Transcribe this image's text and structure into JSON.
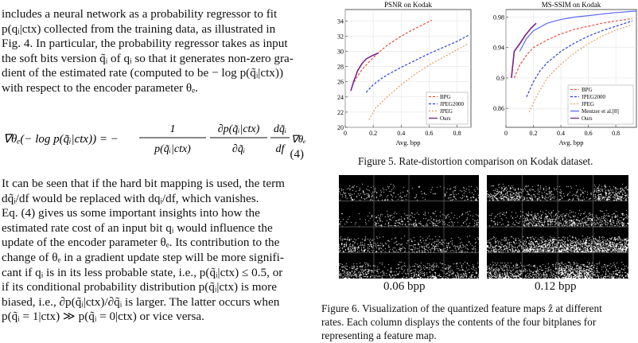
{
  "paper": {
    "lines_top": [
      "includes a neural network as a probability regressor to fit",
      "p(qᵢ|ctx) collected from the training data, as illustrated in",
      "Fig. 4. In particular, the probability regressor takes as input",
      "the soft bits version q̃ᵢ of qᵢ so that it generates non-zero gra-",
      "dient of the estimated rate (computed to be − log p(q̃ᵢ|ctx))",
      "with respect to the encoder parameter θₑ."
    ],
    "equation": {
      "lhs": "∇θₑ(− log p(q̃ᵢ|ctx)) = −",
      "frac1_num": "1",
      "frac1_den": "p(q̃ᵢ|ctx)",
      "frac2_num": "∂p(q̃ᵢ|ctx)",
      "frac2_den": "∂q̃ᵢ",
      "frac3_num": "dq̃ᵢ",
      "frac3_den": "df",
      "tail": "∇θₑ f.",
      "number": "(4)"
    },
    "lines_bottom": [
      "It can be seen that if the hard bit mapping is used, the term",
      "dq̃ᵢ/df would be replaced with dqᵢ/df, which vanishes.",
      "    Eq. (4) gives us some important insights into how the",
      "estimated rate cost of an input bit qᵢ would influence the",
      "update of the encoder parameter θₑ. Its contribution to the",
      "change of θₑ in a gradient update step will be more signifi-",
      "cant if qᵢ is in its less probable state, i.e., p(q̃ᵢ|ctx) ≤ 0.5, or",
      "if its conditional probability distribution p(q̃ᵢ|ctx) is more",
      "biased, i.e., ∂p(q̃ᵢ|ctx)/∂q̃ᵢ is larger. The latter occurs when",
      "p(q̃ᵢ = 1|ctx) ≫ p(q̃ᵢ = 0|ctx) or vice versa."
    ]
  },
  "figure5": {
    "caption": "Figure 5. Rate-distortion comparison on Kodak dataset.",
    "colors": {
      "BPG": "#e8503a",
      "JPEG2000": "#2a3fd4",
      "JPEG": "#e0a060",
      "Mentzer": "#5a6cf0",
      "Ours": "#7a2090"
    }
  },
  "chart_data": [
    {
      "type": "line",
      "title": "PSNR on Kodak",
      "xlabel": "Avg. bpp",
      "ylabel": "",
      "xlim": [
        0,
        0.9
      ],
      "ylim": [
        20,
        35.5
      ],
      "xticks": [
        "0",
        "0.2",
        "0.4",
        "0.6",
        "0.8"
      ],
      "yticks": [
        "20",
        "22",
        "24",
        "26",
        "28",
        "30",
        "32",
        "34"
      ],
      "legend_position": "bottom-right",
      "series": [
        {
          "name": "BPG",
          "x": [
            0.05,
            0.08,
            0.12,
            0.17,
            0.23,
            0.3,
            0.4,
            0.5,
            0.62
          ],
          "y": [
            25.5,
            26.5,
            27.6,
            28.6,
            29.7,
            30.8,
            32.0,
            33.0,
            34.1
          ]
        },
        {
          "name": "JPEG2000",
          "x": [
            0.15,
            0.2,
            0.25,
            0.3,
            0.4,
            0.5,
            0.6,
            0.7,
            0.8,
            0.88
          ],
          "y": [
            24.6,
            25.6,
            26.3,
            26.9,
            27.9,
            28.8,
            29.7,
            30.5,
            31.3,
            32.1
          ]
        },
        {
          "name": "JPEG",
          "x": [
            0.17,
            0.22,
            0.3,
            0.4,
            0.5,
            0.6,
            0.7,
            0.8,
            0.88
          ],
          "y": [
            21.0,
            22.6,
            24.0,
            25.6,
            27.0,
            28.2,
            29.2,
            30.2,
            31.0
          ]
        },
        {
          "name": "Ours",
          "x": [
            0.04,
            0.06,
            0.09,
            0.12,
            0.15,
            0.19,
            0.24
          ],
          "y": [
            24.8,
            26.0,
            27.5,
            28.4,
            29.0,
            29.4,
            29.8
          ]
        }
      ]
    },
    {
      "type": "line",
      "title": "MS-SSIM on Kodak",
      "xlabel": "Avg. bpp",
      "ylabel": "",
      "xlim": [
        0,
        0.95
      ],
      "ylim": [
        0.835,
        0.99
      ],
      "xticks": [
        "0",
        "0.2",
        "0.4",
        "0.6",
        "0.8"
      ],
      "yticks": [
        "0.86",
        "0.9",
        "0.94",
        "0.98"
      ],
      "legend_position": "bottom-right",
      "series": [
        {
          "name": "BPG",
          "x": [
            0.06,
            0.1,
            0.15,
            0.2,
            0.3,
            0.4,
            0.5,
            0.6,
            0.7,
            0.8,
            0.92
          ],
          "y": [
            0.9,
            0.917,
            0.93,
            0.94,
            0.95,
            0.958,
            0.964,
            0.968,
            0.972,
            0.975,
            0.978
          ]
        },
        {
          "name": "JPEG2000",
          "x": [
            0.15,
            0.2,
            0.25,
            0.3,
            0.4,
            0.5,
            0.6,
            0.7,
            0.8,
            0.92
          ],
          "y": [
            0.875,
            0.895,
            0.91,
            0.92,
            0.935,
            0.946,
            0.955,
            0.962,
            0.968,
            0.975
          ]
        },
        {
          "name": "JPEG",
          "x": [
            0.17,
            0.22,
            0.3,
            0.4,
            0.5,
            0.6,
            0.7,
            0.8,
            0.92
          ],
          "y": [
            0.855,
            0.875,
            0.9,
            0.918,
            0.933,
            0.945,
            0.955,
            0.963,
            0.97
          ]
        },
        {
          "name": "Mentzer et al.[8]",
          "x": [
            0.1,
            0.15,
            0.2,
            0.3,
            0.4,
            0.5,
            0.6,
            0.7,
            0.8,
            0.95
          ],
          "y": [
            0.935,
            0.952,
            0.962,
            0.972,
            0.977,
            0.98,
            0.982,
            0.984,
            0.986,
            0.988
          ]
        },
        {
          "name": "Ours",
          "x": [
            0.04,
            0.06,
            0.1,
            0.14,
            0.18,
            0.22
          ],
          "y": [
            0.9,
            0.935,
            0.945,
            0.956,
            0.965,
            0.972
          ]
        }
      ]
    }
  ],
  "figure6": {
    "label_left": "0.06 bpp",
    "label_right": "0.12 bpp",
    "caption_lines": [
      "Figure 6. Visualization of the quantized feature maps ẑ at different",
      "rates. Each column displays the contents of the four bitplanes for",
      "representing a feature map."
    ]
  }
}
